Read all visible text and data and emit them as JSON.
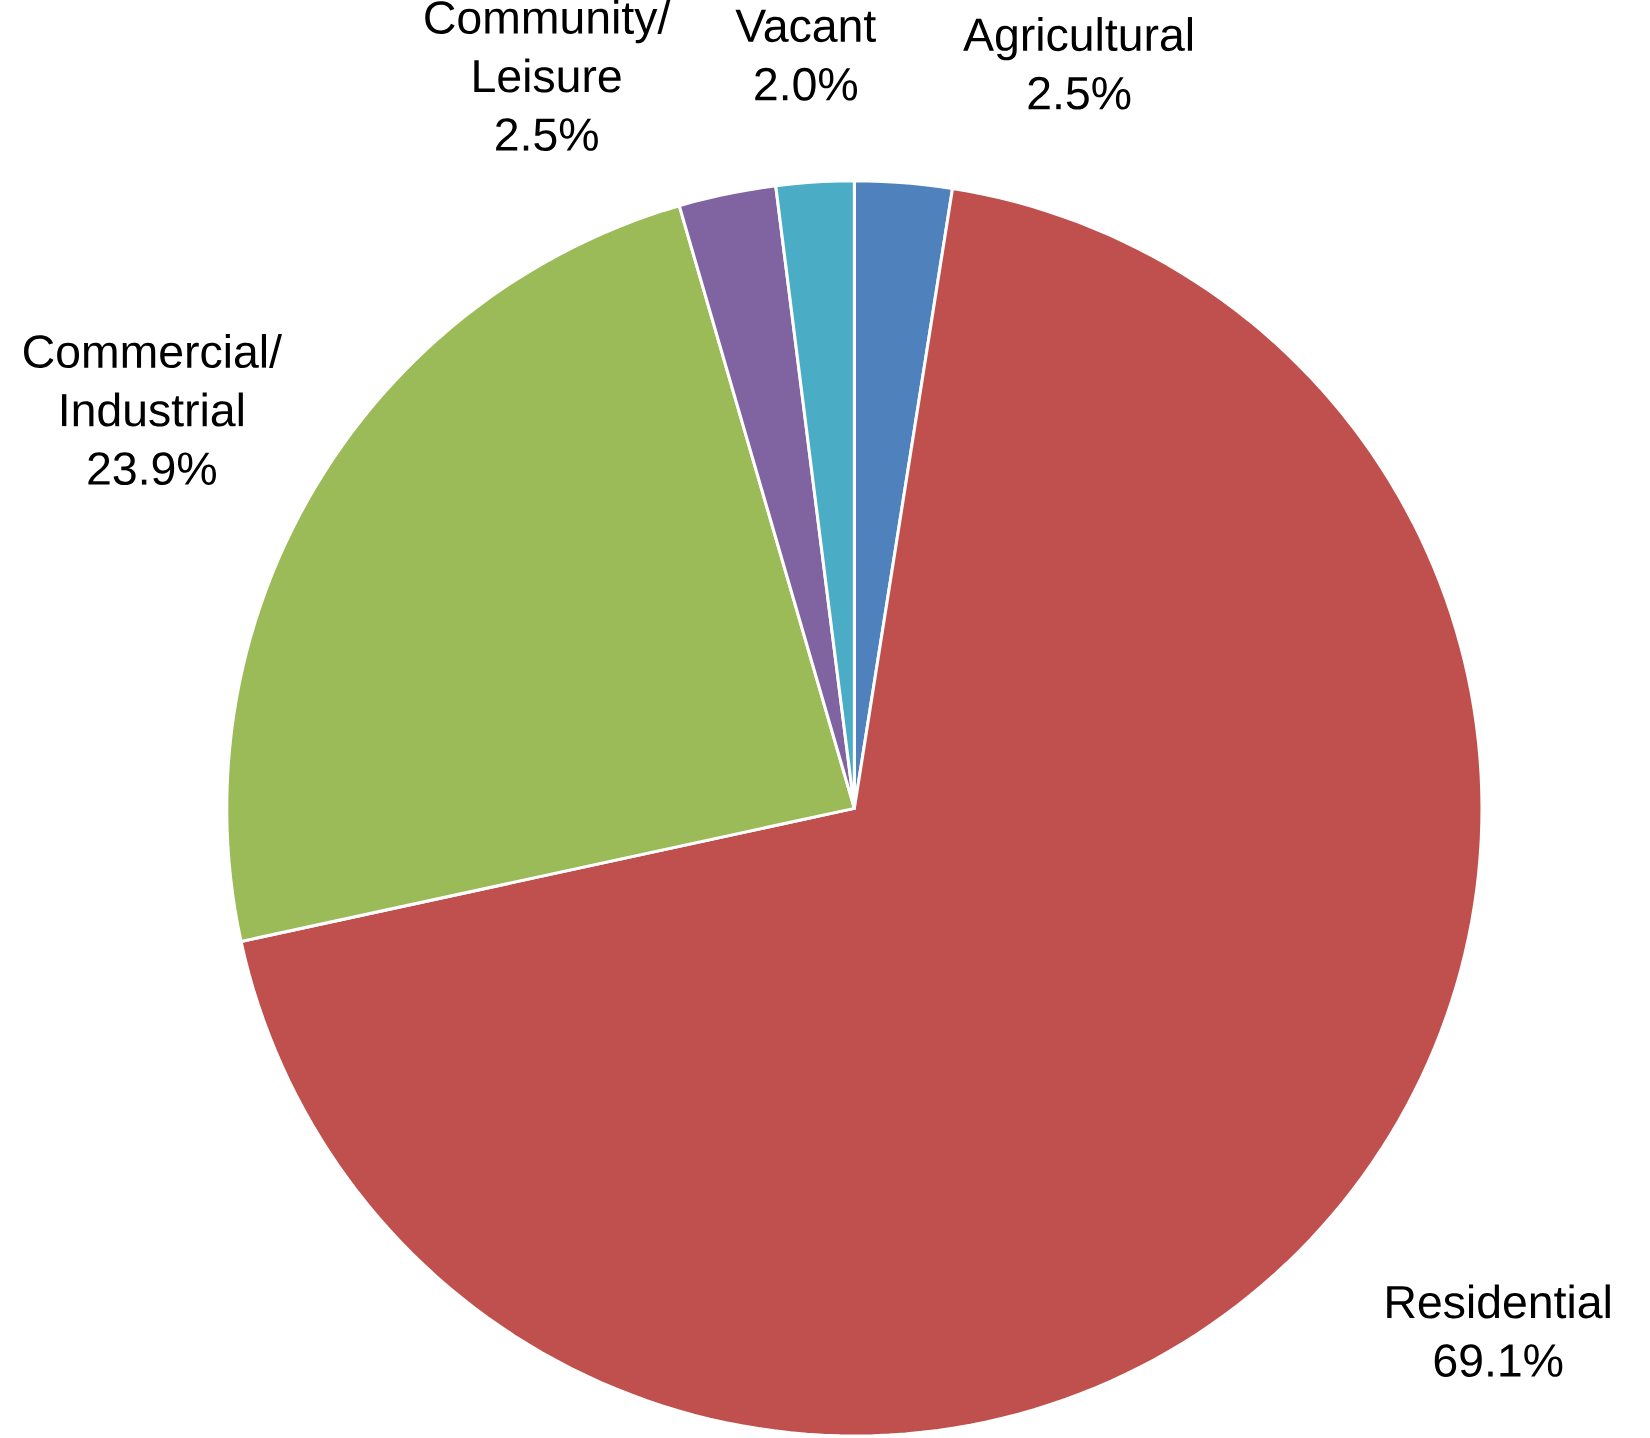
{
  "chart_data": {
    "type": "pie",
    "categories": [
      "Agricultural",
      "Residential",
      "Commercial/ Industrial",
      "Community/ Leisure",
      "Vacant"
    ],
    "values": [
      2.5,
      69.1,
      23.9,
      2.5,
      2.0
    ],
    "value_labels": [
      "2.5%",
      "69.1%",
      "23.9%",
      "2.5%",
      "2.0%"
    ],
    "colors": [
      "#4f81bd",
      "#c0504d",
      "#9bbb59",
      "#8064a2",
      "#4bacc6"
    ]
  }
}
